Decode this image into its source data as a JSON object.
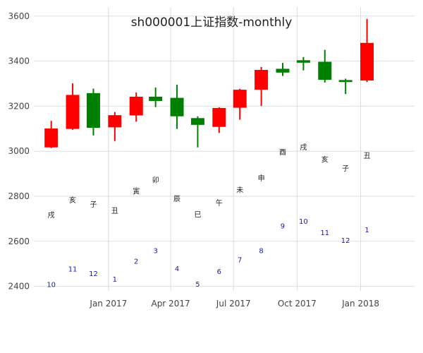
{
  "chart_data": {
    "type": "candlestick",
    "title": "sh000001上证指数-monthly",
    "ylim": [
      2380,
      3640
    ],
    "y_ticks": [
      2400,
      2600,
      2800,
      3000,
      3200,
      3400,
      3600
    ],
    "x_ticks": [
      {
        "date": "2017-01",
        "label": "Jan 2017"
      },
      {
        "date": "2017-04",
        "label": "Apr 2017"
      },
      {
        "date": "2017-07",
        "label": "Jul 2017"
      },
      {
        "date": "2017-10",
        "label": "Oct 2017"
      },
      {
        "date": "2018-01",
        "label": "Jan 2018"
      }
    ],
    "x_range": [
      "2016-09-15",
      "2018-03-20"
    ],
    "colors": {
      "up": "#ff0000",
      "down": "#008000",
      "grid": "#dddddd",
      "month_text": "#1a1aa8"
    },
    "candles": [
      {
        "date": "2016-10",
        "open": 3017,
        "high": 3135,
        "low": 3014,
        "close": 3101
      },
      {
        "date": "2016-11",
        "open": 3099,
        "high": 3301,
        "low": 3095,
        "close": 3250
      },
      {
        "date": "2016-12",
        "open": 3258,
        "high": 3278,
        "low": 3070,
        "close": 3104
      },
      {
        "date": "2017-01",
        "open": 3106,
        "high": 3174,
        "low": 3045,
        "close": 3160
      },
      {
        "date": "2017-02",
        "open": 3159,
        "high": 3261,
        "low": 3131,
        "close": 3242
      },
      {
        "date": "2017-03",
        "open": 3242,
        "high": 3283,
        "low": 3196,
        "close": 3223
      },
      {
        "date": "2017-04",
        "open": 3237,
        "high": 3295,
        "low": 3099,
        "close": 3155
      },
      {
        "date": "2017-05",
        "open": 3147,
        "high": 3155,
        "low": 3017,
        "close": 3117
      },
      {
        "date": "2017-06",
        "open": 3108,
        "high": 3195,
        "low": 3081,
        "close": 3192
      },
      {
        "date": "2017-07",
        "open": 3193,
        "high": 3277,
        "low": 3140,
        "close": 3273
      },
      {
        "date": "2017-08",
        "open": 3273,
        "high": 3374,
        "low": 3201,
        "close": 3361
      },
      {
        "date": "2017-09",
        "open": 3366,
        "high": 3392,
        "low": 3334,
        "close": 3349
      },
      {
        "date": "2017-10",
        "open": 3404,
        "high": 3418,
        "low": 3359,
        "close": 3393
      },
      {
        "date": "2017-11",
        "open": 3397,
        "high": 3450,
        "low": 3305,
        "close": 3317
      },
      {
        "date": "2017-12",
        "open": 3316,
        "high": 3322,
        "low": 3254,
        "close": 3307
      },
      {
        "date": "2018-01",
        "open": 3314,
        "high": 3587,
        "low": 3307,
        "close": 3481
      }
    ],
    "annotations": [
      {
        "date": "2016-10",
        "branch": "戌",
        "branch_y": 2718,
        "month": "10",
        "month_y": 2410
      },
      {
        "date": "2016-11",
        "branch": "亥",
        "branch_y": 2785,
        "month": "11",
        "month_y": 2478
      },
      {
        "date": "2016-12",
        "branch": "子",
        "branch_y": 2765,
        "month": "12",
        "month_y": 2458
      },
      {
        "date": "2017-01",
        "branch": "丑",
        "branch_y": 2738,
        "month": "1",
        "month_y": 2433
      },
      {
        "date": "2017-02",
        "branch": "寅",
        "branch_y": 2823,
        "month": "2",
        "month_y": 2513
      },
      {
        "date": "2017-03",
        "branch": "卯",
        "branch_y": 2873,
        "month": "3",
        "month_y": 2560
      },
      {
        "date": "2017-04",
        "branch": "辰",
        "branch_y": 2790,
        "month": "4",
        "month_y": 2480
      },
      {
        "date": "2017-05",
        "branch": "巳",
        "branch_y": 2720,
        "month": "5",
        "month_y": 2412
      },
      {
        "date": "2017-06",
        "branch": "午",
        "branch_y": 2772,
        "month": "6",
        "month_y": 2467
      },
      {
        "date": "2017-07",
        "branch": "未",
        "branch_y": 2830,
        "month": "7",
        "month_y": 2520
      },
      {
        "date": "2017-08",
        "branch": "申",
        "branch_y": 2882,
        "month": "8",
        "month_y": 2560
      },
      {
        "date": "2017-09",
        "branch": "酉",
        "branch_y": 2998,
        "month": "9",
        "month_y": 2670
      },
      {
        "date": "2017-10",
        "branch": "戌",
        "branch_y": 3020,
        "month": "10",
        "month_y": 2690
      },
      {
        "date": "2017-11",
        "branch": "亥",
        "branch_y": 2965,
        "month": "11",
        "month_y": 2640
      },
      {
        "date": "2017-12",
        "branch": "子",
        "branch_y": 2925,
        "month": "12",
        "month_y": 2605
      },
      {
        "date": "2018-01",
        "branch": "丑",
        "branch_y": 2982,
        "month": "1",
        "month_y": 2652
      }
    ]
  }
}
